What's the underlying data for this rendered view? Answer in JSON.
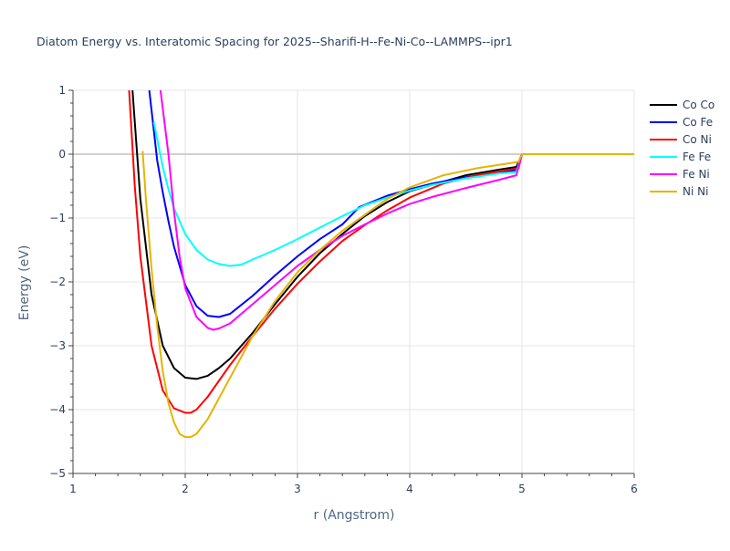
{
  "chart_data": {
    "type": "line",
    "title": "Diatom Energy vs. Interatomic Spacing for 2025--Sharifi-H--Fe-Ni-Co--LAMMPS--ipr1",
    "xlabel": "r (Angstrom)",
    "ylabel": "Energy (eV)",
    "xlim": [
      1,
      6
    ],
    "ylim": [
      -5,
      1
    ],
    "xticks": [
      1,
      2,
      3,
      4,
      5,
      6
    ],
    "xtick_labels": [
      "1",
      "2",
      "3",
      "4",
      "5",
      "6"
    ],
    "yticks": [
      -5,
      -4,
      -3,
      -2,
      -1,
      0,
      1
    ],
    "ytick_labels": [
      "−5",
      "−4",
      "−3",
      "−2",
      "−1",
      "0",
      "1"
    ],
    "grid": true,
    "legend_position": "top-right",
    "series": [
      {
        "name": "Co Co",
        "color": "#000000",
        "x": [
          1.53,
          1.6,
          1.7,
          1.8,
          1.9,
          2.0,
          2.1,
          2.2,
          2.3,
          2.4,
          2.6,
          2.8,
          3.0,
          3.2,
          3.4,
          3.6,
          3.8,
          4.0,
          4.2,
          4.5,
          4.8,
          4.95,
          5.0,
          6.0
        ],
        "y": [
          1.0,
          -0.7,
          -2.2,
          -3.0,
          -3.35,
          -3.5,
          -3.52,
          -3.47,
          -3.35,
          -3.2,
          -2.8,
          -2.35,
          -1.92,
          -1.55,
          -1.25,
          -0.97,
          -0.75,
          -0.58,
          -0.48,
          -0.33,
          -0.24,
          -0.2,
          0.0,
          0.0
        ]
      },
      {
        "name": "Co Fe",
        "color": "#0000ff",
        "x": [
          1.68,
          1.75,
          1.8,
          1.85,
          1.9,
          2.0,
          2.1,
          2.2,
          2.3,
          2.4,
          2.6,
          2.8,
          3.0,
          3.2,
          3.4,
          3.55,
          3.8,
          4.0,
          4.2,
          4.5,
          4.8,
          4.95,
          5.0,
          6.0
        ],
        "y": [
          1.0,
          -0.1,
          -0.6,
          -1.05,
          -1.45,
          -2.05,
          -2.38,
          -2.53,
          -2.55,
          -2.5,
          -2.22,
          -1.9,
          -1.6,
          -1.33,
          -1.1,
          -0.83,
          -0.65,
          -0.55,
          -0.46,
          -0.36,
          -0.28,
          -0.25,
          0.0,
          0.0
        ]
      },
      {
        "name": "Co Ni",
        "color": "#ff0000",
        "x": [
          1.5,
          1.55,
          1.6,
          1.7,
          1.8,
          1.9,
          2.0,
          2.05,
          2.1,
          2.2,
          2.4,
          2.6,
          2.8,
          3.0,
          3.2,
          3.4,
          3.6,
          3.8,
          4.0,
          4.3,
          4.6,
          4.9,
          4.97,
          5.0,
          6.0
        ],
        "y": [
          1.0,
          -0.5,
          -1.6,
          -3.0,
          -3.7,
          -3.98,
          -4.05,
          -4.05,
          -4.0,
          -3.8,
          -3.3,
          -2.85,
          -2.42,
          -2.03,
          -1.68,
          -1.36,
          -1.11,
          -0.88,
          -0.68,
          -0.46,
          -0.33,
          -0.24,
          -0.22,
          0.0,
          0.0
        ]
      },
      {
        "name": "Fe Fe",
        "color": "#00ffff",
        "x": [
          1.72,
          1.8,
          1.85,
          1.9,
          2.0,
          2.1,
          2.2,
          2.3,
          2.4,
          2.5,
          2.6,
          2.8,
          3.0,
          3.2,
          3.4,
          3.6,
          3.8,
          4.0,
          4.2,
          4.5,
          4.8,
          4.95,
          5.0,
          6.0
        ],
        "y": [
          0.5,
          -0.2,
          -0.55,
          -0.85,
          -1.25,
          -1.5,
          -1.65,
          -1.72,
          -1.75,
          -1.73,
          -1.65,
          -1.5,
          -1.33,
          -1.15,
          -0.97,
          -0.8,
          -0.68,
          -0.57,
          -0.48,
          -0.38,
          -0.3,
          -0.28,
          0.0,
          0.0
        ]
      },
      {
        "name": "Fe Ni",
        "color": "#ff00ff",
        "x": [
          1.78,
          1.85,
          1.9,
          1.95,
          2.0,
          2.1,
          2.2,
          2.25,
          2.3,
          2.4,
          2.6,
          2.8,
          3.0,
          3.2,
          3.4,
          3.6,
          3.8,
          4.0,
          4.2,
          4.5,
          4.8,
          4.95,
          5.0,
          6.0
        ],
        "y": [
          1.0,
          0.0,
          -0.9,
          -1.6,
          -2.1,
          -2.55,
          -2.72,
          -2.75,
          -2.73,
          -2.65,
          -2.35,
          -2.05,
          -1.75,
          -1.5,
          -1.28,
          -1.1,
          -0.93,
          -0.78,
          -0.67,
          -0.53,
          -0.4,
          -0.33,
          0.0,
          0.0
        ]
      },
      {
        "name": "Ni Ni",
        "color": "#e6b400",
        "x": [
          1.62,
          1.65,
          1.7,
          1.75,
          1.8,
          1.85,
          1.9,
          1.95,
          2.0,
          2.05,
          2.1,
          2.2,
          2.4,
          2.6,
          2.8,
          3.0,
          3.2,
          3.4,
          3.6,
          3.8,
          4.0,
          4.3,
          4.6,
          4.9,
          4.97,
          5.0,
          6.0
        ],
        "y": [
          0.05,
          -0.7,
          -1.8,
          -2.7,
          -3.4,
          -3.9,
          -4.2,
          -4.38,
          -4.43,
          -4.43,
          -4.38,
          -4.15,
          -3.5,
          -2.85,
          -2.3,
          -1.85,
          -1.5,
          -1.2,
          -0.95,
          -0.7,
          -0.52,
          -0.33,
          -0.22,
          -0.14,
          -0.12,
          0.0,
          0.0
        ]
      }
    ]
  }
}
